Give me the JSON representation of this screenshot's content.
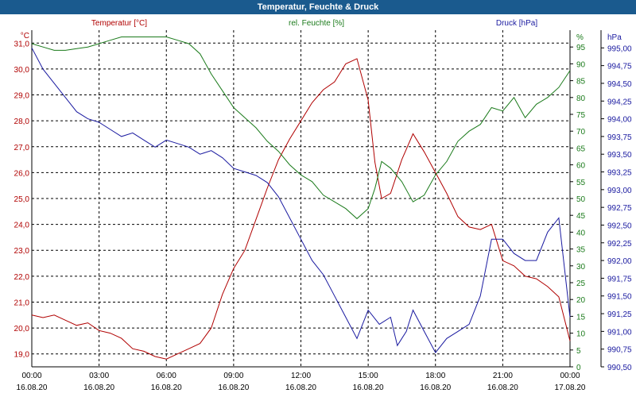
{
  "window": {
    "title": "Temperatur, Feuchte & Druck"
  },
  "chart_data": {
    "type": "line",
    "title": "Temperatur, Feuchte & Druck",
    "colors": {
      "temperature": "#b00000",
      "humidity": "#1a7a1a",
      "pressure": "#1a1aa0",
      "titlebar": "#1a5a8e"
    },
    "grid": true,
    "x_unit": "hours since 16.08.20 00:00",
    "x_ticks": [
      {
        "time": "00:00",
        "date": "16.08.20"
      },
      {
        "time": "03:00",
        "date": "16.08.20"
      },
      {
        "time": "06:00",
        "date": "16.08.20"
      },
      {
        "time": "09:00",
        "date": "16.08.20"
      },
      {
        "time": "12:00",
        "date": "16.08.20"
      },
      {
        "time": "15:00",
        "date": "16.08.20"
      },
      {
        "time": "18:00",
        "date": "16.08.20"
      },
      {
        "time": "21:00",
        "date": "16.08.20"
      },
      {
        "time": "00:00",
        "date": "17.08.20"
      }
    ],
    "axes": {
      "temperature": {
        "unit": "°C",
        "range": [
          18.5,
          31.5
        ],
        "ticks": [
          "31,0",
          "30,0",
          "29,0",
          "28,0",
          "27,0",
          "26,0",
          "25,0",
          "24,0",
          "23,0",
          "22,0",
          "21,0",
          "20,0",
          "19,0"
        ]
      },
      "humidity": {
        "unit": "%",
        "range": [
          0,
          100
        ],
        "ticks": [
          "%",
          "95",
          "90",
          "85",
          "80",
          "75",
          "70",
          "65",
          "60",
          "55",
          "50",
          "45",
          "40",
          "35",
          "30",
          "25",
          "20",
          "15",
          "10",
          "5",
          "0"
        ]
      },
      "pressure": {
        "unit": "hPa",
        "range": [
          990.5,
          995.25
        ],
        "ticks": [
          "hPa",
          "995,00",
          "994,75",
          "994,50",
          "994,25",
          "994,00",
          "993,75",
          "993,50",
          "993,25",
          "993,00",
          "992,75",
          "992,50",
          "992,25",
          "992,00",
          "991,75",
          "991,50",
          "991,25",
          "991,00",
          "990,75",
          "990,50"
        ]
      }
    },
    "series": [
      {
        "name": "Temperatur [°C]",
        "axis": "temperature",
        "points": [
          [
            0,
            20.5
          ],
          [
            0.5,
            20.4
          ],
          [
            1,
            20.5
          ],
          [
            1.5,
            20.3
          ],
          [
            2,
            20.1
          ],
          [
            2.5,
            20.2
          ],
          [
            3,
            19.9
          ],
          [
            3.5,
            19.8
          ],
          [
            4,
            19.6
          ],
          [
            4.5,
            19.2
          ],
          [
            5,
            19.1
          ],
          [
            5.5,
            18.9
          ],
          [
            6,
            18.8
          ],
          [
            6.5,
            19.0
          ],
          [
            7,
            19.2
          ],
          [
            7.5,
            19.4
          ],
          [
            8,
            20.0
          ],
          [
            8.5,
            21.3
          ],
          [
            9,
            22.3
          ],
          [
            9.5,
            23.0
          ],
          [
            10,
            24.2
          ],
          [
            10.5,
            25.4
          ],
          [
            11,
            26.5
          ],
          [
            11.5,
            27.3
          ],
          [
            12,
            28.0
          ],
          [
            12.5,
            28.7
          ],
          [
            13,
            29.2
          ],
          [
            13.5,
            29.5
          ],
          [
            14,
            30.2
          ],
          [
            14.5,
            30.4
          ],
          [
            15,
            28.8
          ],
          [
            15.3,
            26.4
          ],
          [
            15.6,
            25.0
          ],
          [
            16,
            25.2
          ],
          [
            16.5,
            26.5
          ],
          [
            17,
            27.5
          ],
          [
            17.5,
            26.8
          ],
          [
            18,
            26.0
          ],
          [
            18.5,
            25.2
          ],
          [
            19,
            24.3
          ],
          [
            19.5,
            23.9
          ],
          [
            20,
            23.8
          ],
          [
            20.5,
            24.0
          ],
          [
            21,
            22.6
          ],
          [
            21.5,
            22.4
          ],
          [
            22,
            22.0
          ],
          [
            22.5,
            21.9
          ],
          [
            23,
            21.6
          ],
          [
            23.5,
            21.2
          ],
          [
            24,
            19.5
          ]
        ]
      },
      {
        "name": "rel. Feuchte [%]",
        "axis": "humidity",
        "points": [
          [
            0,
            96
          ],
          [
            0.5,
            95
          ],
          [
            1,
            94
          ],
          [
            1.5,
            94
          ],
          [
            2,
            94.5
          ],
          [
            2.5,
            95
          ],
          [
            3,
            96
          ],
          [
            3.5,
            97
          ],
          [
            4,
            98
          ],
          [
            4.5,
            98
          ],
          [
            5,
            98
          ],
          [
            5.5,
            98
          ],
          [
            6,
            98
          ],
          [
            6.5,
            97
          ],
          [
            7,
            96
          ],
          [
            7.5,
            93
          ],
          [
            8,
            87
          ],
          [
            8.5,
            82
          ],
          [
            9,
            77
          ],
          [
            9.5,
            74
          ],
          [
            10,
            71
          ],
          [
            10.5,
            67
          ],
          [
            11,
            64
          ],
          [
            11.5,
            60
          ],
          [
            12,
            57
          ],
          [
            12.5,
            55
          ],
          [
            13,
            51
          ],
          [
            13.5,
            49
          ],
          [
            14,
            47
          ],
          [
            14.5,
            44
          ],
          [
            15,
            47
          ],
          [
            15.3,
            53
          ],
          [
            15.6,
            61
          ],
          [
            16,
            59
          ],
          [
            16.5,
            55
          ],
          [
            17,
            49
          ],
          [
            17.5,
            51
          ],
          [
            18,
            57
          ],
          [
            18.5,
            61
          ],
          [
            19,
            67
          ],
          [
            19.5,
            70
          ],
          [
            20,
            72
          ],
          [
            20.5,
            77
          ],
          [
            21,
            76
          ],
          [
            21.5,
            80
          ],
          [
            22,
            74
          ],
          [
            22.5,
            78
          ],
          [
            23,
            80
          ],
          [
            23.5,
            83
          ],
          [
            24,
            88
          ]
        ]
      },
      {
        "name": "Druck [hPa]",
        "axis": "pressure",
        "points": [
          [
            0,
            995.0
          ],
          [
            0.5,
            994.7
          ],
          [
            1,
            994.5
          ],
          [
            1.5,
            994.3
          ],
          [
            2,
            994.1
          ],
          [
            2.5,
            994.0
          ],
          [
            3,
            993.95
          ],
          [
            3.5,
            993.85
          ],
          [
            4,
            993.75
          ],
          [
            4.5,
            993.8
          ],
          [
            5,
            993.7
          ],
          [
            5.5,
            993.6
          ],
          [
            6,
            993.7
          ],
          [
            6.5,
            993.65
          ],
          [
            7,
            993.6
          ],
          [
            7.5,
            993.5
          ],
          [
            8,
            993.55
          ],
          [
            8.5,
            993.45
          ],
          [
            9,
            993.3
          ],
          [
            9.5,
            993.25
          ],
          [
            10,
            993.2
          ],
          [
            10.5,
            993.1
          ],
          [
            11,
            992.9
          ],
          [
            11.5,
            992.6
          ],
          [
            12,
            992.3
          ],
          [
            12.5,
            992.0
          ],
          [
            13,
            991.8
          ],
          [
            13.5,
            991.5
          ],
          [
            14,
            991.2
          ],
          [
            14.5,
            990.9
          ],
          [
            15,
            991.3
          ],
          [
            15.5,
            991.1
          ],
          [
            16,
            991.2
          ],
          [
            16.3,
            990.8
          ],
          [
            16.7,
            991.0
          ],
          [
            17,
            991.3
          ],
          [
            17.5,
            991.0
          ],
          [
            18,
            990.7
          ],
          [
            18.5,
            990.9
          ],
          [
            19,
            991.0
          ],
          [
            19.5,
            991.1
          ],
          [
            20,
            991.5
          ],
          [
            20.5,
            992.3
          ],
          [
            21,
            992.3
          ],
          [
            21.5,
            992.1
          ],
          [
            22,
            992.0
          ],
          [
            22.5,
            992.0
          ],
          [
            23,
            992.4
          ],
          [
            23.5,
            992.6
          ],
          [
            24,
            991.2
          ]
        ]
      }
    ]
  }
}
